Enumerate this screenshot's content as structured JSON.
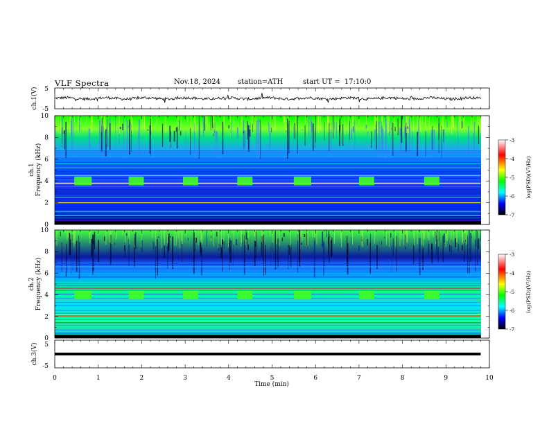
{
  "header": {
    "title": "VLF Spectra",
    "date": "Nov.18, 2024",
    "station": "station=ATH",
    "start_label": "start UT =",
    "start_time": "17:10:0"
  },
  "panels": {
    "ch1_wave": {
      "ylabel": "ch.1(V)",
      "ticks": [
        "5",
        "-5"
      ]
    },
    "ch1_spec": {
      "ylabel_line1": "ch.1",
      "ylabel_line2": "Frequency (kHz)"
    },
    "ch2_spec": {
      "ylabel_line1": "ch.2",
      "ylabel_line2": "Frequency (kHz)"
    },
    "ch3_wave": {
      "ylabel": "ch.3(V)",
      "ticks": [
        "5",
        "-5"
      ]
    }
  },
  "colorbar": {
    "label": "log(PSD)(V²/Hz)",
    "ticks": [
      "-3",
      "-4",
      "-5",
      "-6",
      "-7"
    ],
    "colors": [
      "#ffffff",
      "#ff0000",
      "#ffff00",
      "#00ff00",
      "#00ffff",
      "#0000ff",
      "#000000"
    ]
  },
  "chart_data": [
    {
      "type": "line",
      "name": "ch.1 waveform",
      "ylabel": "ch.1(V)",
      "ylim": [
        -5,
        5
      ],
      "x": [
        0,
        1,
        2,
        3,
        4,
        5,
        6,
        7,
        8,
        9,
        9.8
      ],
      "y": [
        0,
        0,
        0,
        0,
        0,
        0,
        0,
        0,
        0,
        0,
        0
      ]
    },
    {
      "type": "heatmap",
      "name": "ch.1 spectrogram",
      "ylabel": "ch.1 Frequency (kHz)",
      "xlim": [
        0,
        10
      ],
      "ylim": [
        0,
        10
      ],
      "yticks": [
        0,
        2,
        4,
        6,
        8,
        10
      ],
      "zlim": [
        -7,
        -3
      ],
      "bursts_x_min": [
        [
          0.45,
          0.85
        ],
        [
          1.7,
          2.05
        ],
        [
          2.95,
          3.3
        ],
        [
          4.2,
          4.55
        ],
        [
          5.5,
          5.9
        ],
        [
          7.0,
          7.35
        ],
        [
          8.5,
          8.85
        ]
      ],
      "bursts_freq_khz": [
        3.6,
        4.4
      ]
    },
    {
      "type": "heatmap",
      "name": "ch.2 spectrogram",
      "ylabel": "ch.2 Frequency (kHz)",
      "xlim": [
        0,
        10
      ],
      "ylim": [
        0,
        10
      ],
      "yticks": [
        0,
        2,
        4,
        6,
        8,
        10
      ],
      "zlim": [
        -7,
        -3
      ],
      "bursts_x_min": [
        [
          0.45,
          0.85
        ],
        [
          1.7,
          2.05
        ],
        [
          2.95,
          3.3
        ],
        [
          4.2,
          4.55
        ],
        [
          5.5,
          5.9
        ],
        [
          7.0,
          7.35
        ],
        [
          8.5,
          8.85
        ]
      ],
      "bursts_freq_khz": [
        3.6,
        4.4
      ],
      "lines_khz": [
        2.0,
        3.5,
        4.6
      ]
    },
    {
      "type": "line",
      "name": "ch.3 waveform",
      "ylabel": "ch.3(V)",
      "ylim": [
        -5,
        5
      ],
      "x": [
        0,
        9.8
      ],
      "y": [
        0,
        0
      ]
    }
  ],
  "xaxis": {
    "label": "Time (min)",
    "ticks": [
      "0",
      "1",
      "2",
      "3",
      "4",
      "5",
      "6",
      "7",
      "8",
      "9",
      "10"
    ],
    "range": [
      0,
      10
    ]
  }
}
